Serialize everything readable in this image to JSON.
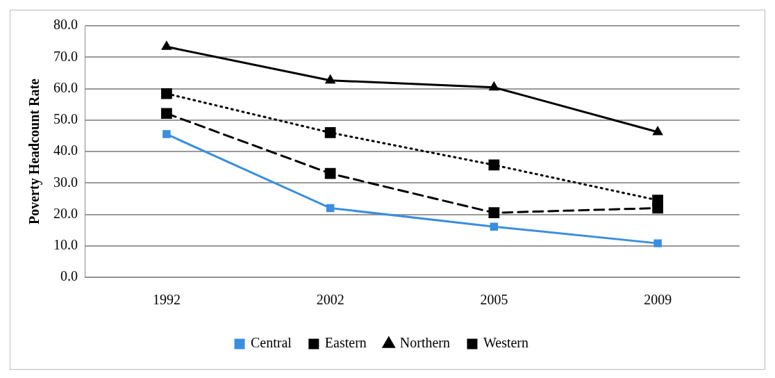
{
  "chart_data": {
    "type": "line",
    "ylabel": "Poverty Headcount Rate",
    "categories": [
      "1992",
      "2002",
      "2005",
      "2009"
    ],
    "ylim": [
      0,
      80
    ],
    "yticks": [
      {
        "value": 0,
        "label": "0.0"
      },
      {
        "value": 10,
        "label": "10.0"
      },
      {
        "value": 20,
        "label": "20.0"
      },
      {
        "value": 30,
        "label": "30.0"
      },
      {
        "value": 40,
        "label": "40.0"
      },
      {
        "value": 50,
        "label": "50.0"
      },
      {
        "value": 60,
        "label": "60.0"
      },
      {
        "value": 70,
        "label": "70.0"
      },
      {
        "value": 80,
        "label": "80.0"
      }
    ],
    "grid": "y",
    "legend": "bottom",
    "series": [
      {
        "name": "Central",
        "color": "#3a8ee0",
        "values": [
          45.5,
          22.0,
          16.1,
          10.8
        ],
        "marker": "square",
        "line_style": "solid"
      },
      {
        "name": "Eastern",
        "color": "#000000",
        "values": [
          58.4,
          46.0,
          35.7,
          24.5
        ],
        "marker": "square",
        "line_style": "dotted"
      },
      {
        "name": "Northern",
        "color": "#000000",
        "values": [
          73.3,
          62.6,
          60.4,
          46.2
        ],
        "marker": "triangle",
        "line_style": "solid"
      },
      {
        "name": "Western",
        "color": "#000000",
        "values": [
          52.1,
          33.0,
          20.5,
          22.0
        ],
        "marker": "square",
        "line_style": "dashed"
      }
    ]
  }
}
